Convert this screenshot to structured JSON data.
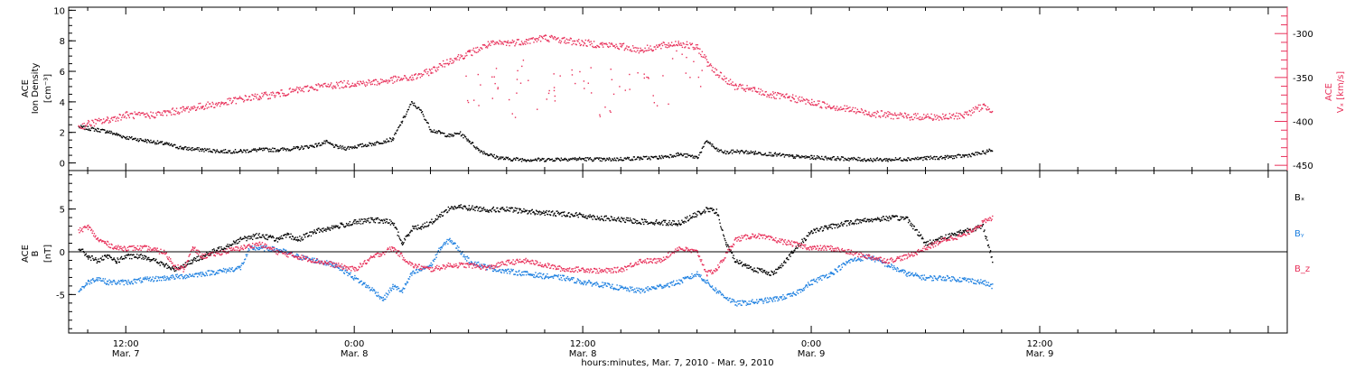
{
  "chart_data": [
    {
      "type": "scatter",
      "panel": "top",
      "ylabel_left": [
        "ACE",
        "Ion Density",
        "[cm⁻³]"
      ],
      "ylabel_right": [
        "ACE",
        "Vₓ [km/s]"
      ],
      "y_left_ticks": [
        "0",
        "2",
        "4",
        "6",
        "8",
        "10"
      ],
      "y_left_range": [
        -0.5,
        10.2
      ],
      "y_right_ticks": [
        "-300",
        "-350",
        "-400",
        "-450"
      ],
      "y_right_range": [
        -456,
        -270
      ],
      "colors": {
        "density": "#000000",
        "velocity": "#e8305a"
      },
      "series": [
        {
          "axis": "left",
          "color_key": "density",
          "x": [
            9.5,
            10,
            10.5,
            11,
            11.5,
            12,
            13,
            14,
            15,
            16,
            17,
            18,
            19,
            20,
            21,
            22,
            22.5,
            23,
            23.5,
            24,
            25,
            26,
            26.5,
            27,
            27.5,
            28,
            28.5,
            29,
            29.5,
            30,
            30.5,
            31,
            31.5,
            32,
            33,
            34,
            35,
            36,
            37,
            38,
            39,
            40,
            41,
            42,
            42.5,
            43,
            43.5,
            44,
            45,
            46,
            47,
            48,
            49,
            50,
            51,
            52,
            53,
            54,
            55,
            56,
            57,
            57.5
          ],
          "y": [
            2.4,
            2.3,
            2.2,
            2.1,
            1.9,
            1.7,
            1.5,
            1.3,
            1.0,
            0.9,
            0.8,
            0.8,
            0.9,
            0.9,
            1.0,
            1.2,
            1.4,
            1.1,
            1.0,
            1.1,
            1.3,
            1.6,
            2.8,
            4.0,
            3.4,
            2.2,
            2.0,
            1.8,
            2.0,
            1.5,
            0.9,
            0.6,
            0.4,
            0.3,
            0.25,
            0.25,
            0.3,
            0.3,
            0.25,
            0.3,
            0.35,
            0.4,
            0.6,
            0.4,
            1.5,
            0.9,
            0.7,
            0.8,
            0.7,
            0.6,
            0.45,
            0.4,
            0.35,
            0.3,
            0.25,
            0.25,
            0.3,
            0.35,
            0.4,
            0.5,
            0.7,
            0.9
          ]
        },
        {
          "axis": "right",
          "color_key": "velocity",
          "x": [
            9.5,
            10,
            11,
            12,
            13,
            14,
            15,
            16,
            17,
            18,
            19,
            20,
            21,
            22,
            23,
            24,
            25,
            26,
            27,
            28,
            29,
            30,
            31,
            32,
            33,
            34,
            35,
            36,
            37,
            38,
            39,
            40,
            41,
            42,
            43,
            44,
            45,
            46,
            47,
            48,
            49,
            50,
            51,
            52,
            53,
            54,
            55,
            56,
            57,
            57.5
          ],
          "y": [
            -406,
            -402,
            -398,
            -392,
            -393,
            -390,
            -386,
            -382,
            -379,
            -374,
            -371,
            -368,
            -364,
            -360,
            -358,
            -356,
            -355,
            -352,
            -350,
            -342,
            -330,
            -322,
            -312,
            -310,
            -308,
            -304,
            -307,
            -310,
            -312,
            -314,
            -318,
            -314,
            -310,
            -316,
            -344,
            -360,
            -364,
            -370,
            -373,
            -378,
            -382,
            -386,
            -390,
            -392,
            -394,
            -394,
            -395,
            -392,
            -382,
            -386
          ]
        },
        {
          "axis": "right",
          "color_key": "velocity",
          "scatter_only": true,
          "x": [
            30,
            31,
            32,
            33,
            34,
            35,
            36,
            37,
            38,
            39,
            40,
            41,
            42
          ],
          "y": [
            -365,
            -355,
            -375,
            -345,
            -380,
            -360,
            -350,
            -375,
            -355,
            -340,
            -365,
            -330,
            -350
          ]
        }
      ]
    },
    {
      "type": "scatter",
      "panel": "bottom",
      "ylabel_left": [
        "ACE",
        "B",
        "[nT]"
      ],
      "y_left_ticks": [
        "5",
        "0",
        "-5"
      ],
      "y_left_range": [
        -9.5,
        9.5
      ],
      "zero_line": true,
      "legend": [
        "Bₓ",
        "Bᵧ",
        "B_z"
      ],
      "legend_placement": "right",
      "colors": {
        "bx": "#000000",
        "by": "#1c7fe0",
        "bz": "#e8305a"
      },
      "series": [
        {
          "name": "Bₓ",
          "color_key": "bx",
          "x": [
            9.5,
            10,
            10.5,
            11,
            11.5,
            12,
            13,
            14,
            14.5,
            15,
            15.5,
            16,
            17,
            18,
            19,
            20,
            20.5,
            21,
            22,
            23,
            24,
            25,
            26,
            26.5,
            27,
            27.5,
            28,
            29,
            29.5,
            30,
            31,
            32,
            33,
            34,
            35,
            36,
            37,
            38,
            39,
            40,
            41,
            42,
            42.5,
            43,
            43.5,
            44,
            45,
            46,
            47,
            48,
            49,
            50,
            51,
            52,
            53,
            54,
            55,
            56,
            57,
            57.5
          ],
          "y": [
            0.5,
            -0.5,
            -1,
            -0.5,
            -1,
            -0.5,
            -0.5,
            -1.5,
            -2,
            -1.5,
            -1,
            -0.5,
            0.5,
            1.5,
            2,
            1.5,
            2,
            1.5,
            2.5,
            3,
            3.5,
            3.8,
            3.5,
            1,
            2.8,
            3,
            3.5,
            5.2,
            5.3,
            5.2,
            5,
            5,
            4.8,
            4.6,
            4.5,
            4.3,
            4,
            3.8,
            3.6,
            3.5,
            3.4,
            4.5,
            5,
            4.8,
            1,
            -1,
            -2,
            -2.5,
            0,
            2.5,
            3,
            3.5,
            3.8,
            4,
            4,
            1,
            1.8,
            2.5,
            3,
            -1
          ]
        },
        {
          "name": "Bᵧ",
          "color_key": "by",
          "x": [
            9.5,
            10,
            10.5,
            11,
            12,
            13,
            14,
            15,
            16,
            17,
            18,
            18.5,
            19,
            20,
            21,
            22,
            23,
            24,
            25,
            25.5,
            26,
            26.5,
            27,
            27.5,
            28,
            28.5,
            29,
            30,
            31,
            32,
            33,
            34,
            35,
            36,
            37,
            38,
            39,
            40,
            41,
            42,
            43,
            44,
            45,
            46,
            47,
            48,
            49,
            50,
            51,
            52,
            53,
            54,
            55,
            56,
            57,
            57.5
          ],
          "y": [
            -4.5,
            -3.5,
            -3,
            -3.5,
            -3.5,
            -3.2,
            -3,
            -2.8,
            -2.5,
            -2.2,
            -1.8,
            0.5,
            0.5,
            0.3,
            -0.5,
            -1,
            -1.5,
            -3,
            -4.5,
            -5.5,
            -4,
            -4.5,
            -2.5,
            -2,
            -1.5,
            0.5,
            1.5,
            -1,
            -1.8,
            -2.2,
            -2.5,
            -2.8,
            -3,
            -3.5,
            -3.8,
            -4.2,
            -4.5,
            -4,
            -3.5,
            -2.5,
            -4.5,
            -6,
            -5.8,
            -5.5,
            -5,
            -3.5,
            -2.5,
            -1,
            -0.5,
            -1.5,
            -2.5,
            -3,
            -3,
            -3.2,
            -3.5,
            -4
          ]
        },
        {
          "name": "B_z",
          "color_key": "bz",
          "x": [
            9.5,
            10,
            10.5,
            11,
            11.5,
            12,
            13,
            14,
            14.5,
            15,
            15.5,
            16,
            17,
            18,
            19,
            20,
            21,
            22,
            23,
            24,
            25,
            26,
            27,
            28,
            29,
            30,
            31,
            32,
            33,
            34,
            35,
            36,
            37,
            38,
            39,
            40,
            41,
            42,
            42.5,
            43,
            44,
            45,
            46,
            47,
            48,
            49,
            50,
            51,
            52,
            53,
            54,
            55,
            56,
            57,
            57.5
          ],
          "y": [
            2.5,
            3,
            1.5,
            1,
            0.5,
            0.5,
            0.5,
            0,
            -1.5,
            -2,
            0.5,
            -0.5,
            0,
            0.5,
            1,
            0,
            -0.5,
            -1,
            -1.5,
            -2,
            -0.5,
            0.5,
            -1.5,
            -2,
            -1.5,
            -1.5,
            -1.8,
            -1.2,
            -1,
            -1.5,
            -2,
            -2,
            -2.2,
            -2,
            -1,
            -1,
            0.5,
            0,
            -2.5,
            -2,
            1.5,
            2,
            1.5,
            1,
            0.5,
            0.5,
            0,
            -0.5,
            -1,
            -0.5,
            0.5,
            1.5,
            2,
            3.5,
            4
          ]
        }
      ]
    }
  ],
  "x_axis": {
    "range_hours": [
      9,
      73
    ],
    "ticks": [
      {
        "hours": 12,
        "label": "12:00",
        "date": "Mar. 7"
      },
      {
        "hours": 24,
        "label": "0:00",
        "date": "Mar. 8"
      },
      {
        "hours": 36,
        "label": "12:00",
        "date": "Mar. 8"
      },
      {
        "hours": 48,
        "label": "0:00",
        "date": "Mar. 9"
      },
      {
        "hours": 60,
        "label": "12:00",
        "date": "Mar. 9"
      }
    ],
    "title": "hours:minutes, Mar. 7, 2010 - Mar. 9, 2010"
  }
}
